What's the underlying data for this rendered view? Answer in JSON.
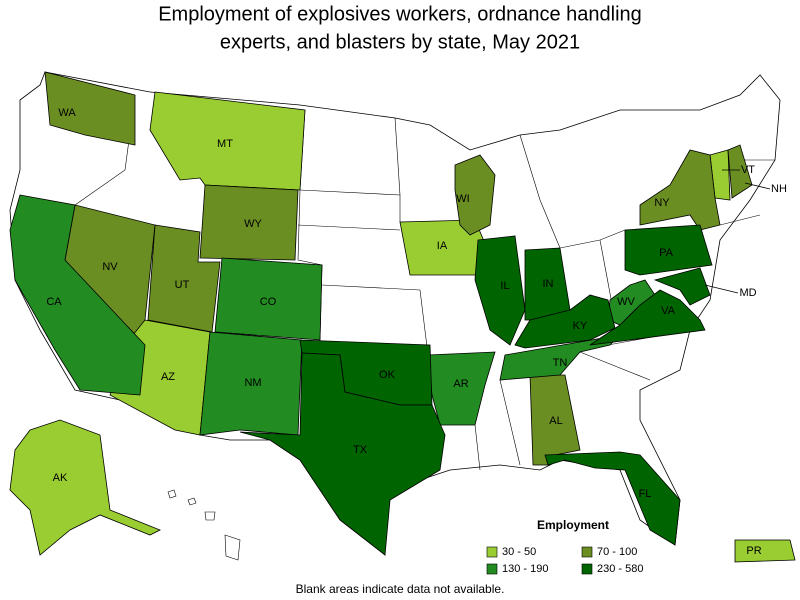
{
  "title_lines": [
    "Employment of explosives workers, ordnance handling",
    "experts, and blasters by state, May 2021"
  ],
  "legend": {
    "title": "Employment",
    "items": [
      {
        "label": "30 - 50",
        "color": "#9acd32",
        "states": [
          "MT",
          "IA",
          "AZ",
          "VT",
          "AK",
          "PR"
        ]
      },
      {
        "label": "70 - 100",
        "color": "#6b8e23",
        "states": [
          "WA",
          "NV",
          "UT",
          "WY",
          "WI",
          "NY",
          "AL",
          "NH"
        ]
      },
      {
        "label": "130 - 190",
        "color": "#228b22",
        "states": [
          "CA",
          "CO",
          "NM",
          "AR",
          "TN",
          "WV"
        ]
      },
      {
        "label": "230 - 580",
        "color": "#006400",
        "states": [
          "IL",
          "IN",
          "KY",
          "PA",
          "VA",
          "MD",
          "OK",
          "TX",
          "FL"
        ]
      }
    ]
  },
  "note": "Blank areas indicate data not available."
}
